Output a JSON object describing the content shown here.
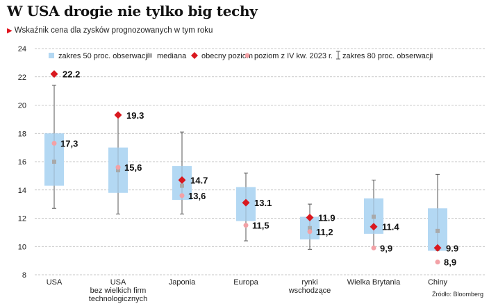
{
  "title": "W USA drogie nie tylko big techy",
  "subtitle": "Wskaźnik cena dla zysków prognozowanych w tym roku",
  "source": "Źródło: Bloomberg",
  "colors": {
    "box": "#b3d8f3",
    "median": "#a9a9a9",
    "current": "#d9181f",
    "q4_2023": "#f3a1a6",
    "whisker": "#555555",
    "grid": "#b5b5b5"
  },
  "legend": [
    {
      "key": "box",
      "label": "zakres 50 proc. obserwacji"
    },
    {
      "key": "median",
      "label": "mediana"
    },
    {
      "key": "current",
      "label": "obecny poziom"
    },
    {
      "key": "q4",
      "label": "poziom z IV kw. 2023 r."
    },
    {
      "key": "range80",
      "label": "zakres 80 proc. obserwacji"
    }
  ],
  "chart_data": {
    "type": "boxplot",
    "ylim": [
      8,
      24
    ],
    "yticks": [
      "8",
      "10",
      "12",
      "14",
      "16",
      "18",
      "20",
      "22",
      "24"
    ],
    "grid": true,
    "categories": [
      {
        "label": [
          "USA"
        ],
        "low80": 12.7,
        "high80": 21.4,
        "q1": 14.3,
        "q3": 18.0,
        "median": 16.0,
        "current": 22.2,
        "current_label": "22.2",
        "q4": 17.3,
        "q4_label": "17,3"
      },
      {
        "label": [
          "USA",
          "bez wielkich firm",
          "technologicznych"
        ],
        "low80": 12.3,
        "high80": 19.3,
        "q1": 13.8,
        "q3": 17.0,
        "median": 15.4,
        "current": 19.3,
        "current_label": "19.3",
        "q4": 15.6,
        "q4_label": "15,6"
      },
      {
        "label": [
          "Japonia"
        ],
        "low80": 12.3,
        "high80": 18.1,
        "q1": 13.3,
        "q3": 15.7,
        "median": 14.3,
        "current": 14.7,
        "current_label": "14.7",
        "q4": 13.6,
        "q4_label": "13,6"
      },
      {
        "label": [
          "Europa"
        ],
        "low80": 10.4,
        "high80": 15.2,
        "q1": 11.8,
        "q3": 14.2,
        "median": 13.1,
        "current": 13.1,
        "current_label": "13.1",
        "q4": 11.5,
        "q4_label": "11,5"
      },
      {
        "label": [
          "rynki",
          "wschodzące"
        ],
        "low80": 9.8,
        "high80": 13.0,
        "q1": 10.5,
        "q3": 12.1,
        "median": 11.3,
        "current": 11.9,
        "current_label": "11.9",
        "q4": 11.2,
        "q4_label": "11,2"
      },
      {
        "label": [
          "Wielka Brytania"
        ],
        "low80": 9.9,
        "high80": 14.7,
        "q1": 10.9,
        "q3": 13.4,
        "median": 12.1,
        "current": 11.4,
        "current_label": "11.4",
        "q4": 9.9,
        "q4_label": "9,9"
      },
      {
        "label": [
          "Chiny"
        ],
        "low80": 9.7,
        "high80": 15.1,
        "q1": 9.7,
        "q3": 12.7,
        "median": 11.1,
        "current": 9.9,
        "current_label": "9.9",
        "q4": 8.9,
        "q4_label": "8,9"
      }
    ]
  }
}
